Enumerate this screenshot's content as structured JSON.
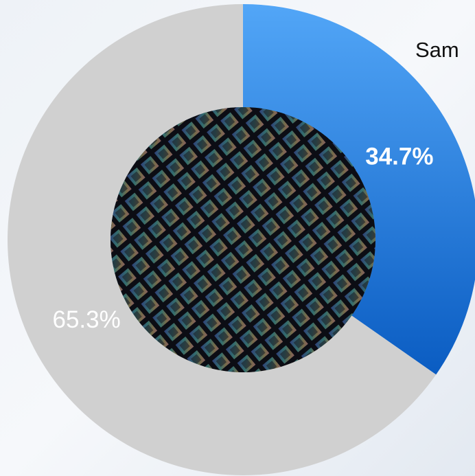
{
  "chart_data": {
    "type": "donut",
    "categories": [
      "Sam",
      null
    ],
    "values": [
      34.7,
      65.3
    ],
    "value_labels": [
      "34.7%",
      "65.3%"
    ],
    "colors": [
      "#1f7ee0",
      "#d0d0d0"
    ]
  }
}
